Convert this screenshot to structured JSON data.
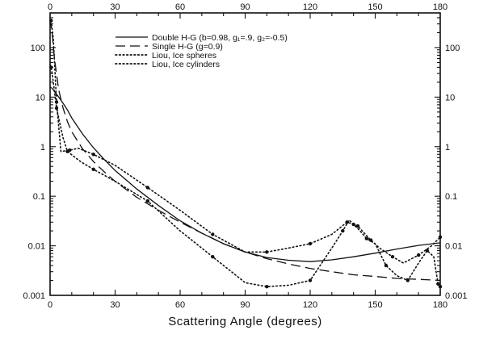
{
  "chart_data": {
    "type": "line",
    "xlabel": "Scattering Angle (degrees)",
    "ylabel": "",
    "xlim": [
      0,
      180
    ],
    "ylim": [
      0.001,
      500
    ],
    "yscale": "log",
    "grid": false,
    "legend_position": "top-center",
    "x_ticks": [
      "0",
      "30",
      "60",
      "90",
      "120",
      "150",
      "180"
    ],
    "y_ticks": [
      "0.001",
      "0.01",
      "0.1",
      "1",
      "10",
      "100"
    ],
    "x_tick_values": [
      0,
      30,
      60,
      90,
      120,
      150,
      180
    ],
    "y_tick_values": [
      0.001,
      0.01,
      0.1,
      1,
      10,
      100
    ],
    "series": [
      {
        "name": "Double H-G (b=0.98, g₁=.9, g₂=-0.5)",
        "style": "solid",
        "color": "#111111",
        "x": [
          0,
          1,
          2,
          4,
          6,
          8,
          10,
          15,
          20,
          25,
          30,
          40,
          50,
          60,
          70,
          80,
          90,
          100,
          110,
          120,
          130,
          140,
          150,
          160,
          170,
          180
        ],
        "y": [
          16,
          15,
          13,
          10,
          7.5,
          5.5,
          3.8,
          1.8,
          0.95,
          0.55,
          0.33,
          0.14,
          0.065,
          0.032,
          0.018,
          0.011,
          0.0075,
          0.0058,
          0.0051,
          0.0048,
          0.0052,
          0.006,
          0.0071,
          0.0086,
          0.0102,
          0.0115
        ]
      },
      {
        "name": "Single H-G (g=0.9)",
        "style": "dashed",
        "color": "#111111",
        "x": [
          0,
          1,
          2,
          4,
          6,
          8,
          10,
          15,
          20,
          25,
          30,
          40,
          50,
          60,
          70,
          80,
          90,
          100,
          110,
          120,
          130,
          140,
          150,
          160,
          170,
          180
        ],
        "y": [
          380,
          180,
          60,
          14,
          6,
          3.2,
          2,
          0.9,
          0.5,
          0.31,
          0.2,
          0.095,
          0.052,
          0.03,
          0.018,
          0.011,
          0.0075,
          0.0055,
          0.0043,
          0.0035,
          0.003,
          0.0026,
          0.0024,
          0.0022,
          0.0021,
          0.002
        ]
      },
      {
        "name": "Liou, Ice spheres",
        "style": "dotted",
        "color": "#111111",
        "x": [
          0,
          0.5,
          1.5,
          3,
          5,
          9,
          13,
          20,
          30,
          45,
          60,
          75,
          90,
          100,
          110,
          120,
          130,
          137,
          139,
          142,
          144,
          148,
          152,
          158,
          163,
          170,
          176,
          180
        ],
        "y": [
          300,
          350,
          150,
          8,
          0.8,
          0.85,
          0.93,
          0.7,
          0.42,
          0.15,
          0.052,
          0.017,
          0.0075,
          0.0075,
          0.009,
          0.011,
          0.017,
          0.03,
          0.028,
          0.025,
          0.02,
          0.013,
          0.009,
          0.006,
          0.0045,
          0.0065,
          0.01,
          0.015
        ]
      },
      {
        "name": "Liou, Ice cylinders",
        "style": "dotted",
        "color": "#111111",
        "x": [
          0,
          0.5,
          1.5,
          3,
          6,
          8,
          14,
          20,
          30,
          45,
          60,
          75,
          90,
          100,
          110,
          120,
          130,
          135,
          138,
          140,
          143,
          146,
          150,
          155,
          160,
          165,
          170,
          174,
          177,
          179,
          180
        ],
        "y": [
          45,
          40,
          20,
          6,
          1.5,
          0.8,
          0.5,
          0.35,
          0.2,
          0.08,
          0.02,
          0.006,
          0.0018,
          0.0015,
          0.0016,
          0.002,
          0.009,
          0.02,
          0.033,
          0.027,
          0.02,
          0.014,
          0.011,
          0.004,
          0.0025,
          0.002,
          0.0045,
          0.008,
          0.006,
          0.0017,
          0.0015
        ]
      }
    ]
  }
}
